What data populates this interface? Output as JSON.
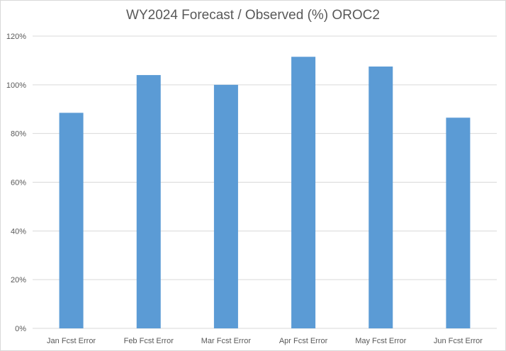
{
  "chart_data": {
    "type": "bar",
    "title": "WY2024 Forecast / Observed (%) OROC2",
    "xlabel": "",
    "ylabel": "",
    "categories": [
      "Jan Fcst Error",
      "Feb Fcst Error",
      "Mar Fcst Error",
      "Apr Fcst Error",
      "May Fcst Error",
      "Jun Fcst Error"
    ],
    "values": [
      88.5,
      104,
      100,
      111.5,
      107.5,
      86.5
    ],
    "ylim": [
      0,
      120
    ],
    "yticks": [
      0,
      20,
      40,
      60,
      80,
      100,
      120
    ],
    "ytick_labels": [
      "0%",
      "20%",
      "40%",
      "60%",
      "80%",
      "100%",
      "120%"
    ],
    "grid": true,
    "legend": "none",
    "bar_color": "#5B9BD5",
    "grid_color": "#d9d9d9"
  }
}
